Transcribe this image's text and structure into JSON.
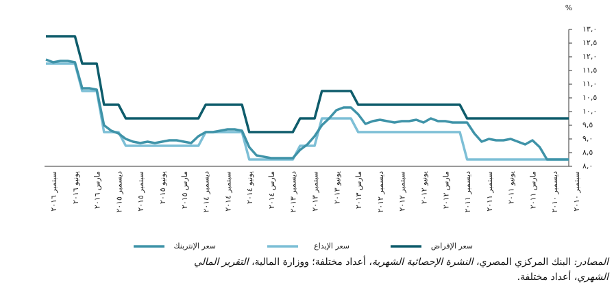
{
  "chart_data": {
    "type": "line",
    "unit_label": "%",
    "categories": [
      "سبتمبر ٢٠١٦",
      null,
      null,
      "يونيو ٢٠١٦",
      null,
      null,
      "مارس ٢٠١٦",
      null,
      null,
      "ديسمبر ٢٠١٥",
      null,
      null,
      "سبتمبر ٢٠١٥",
      null,
      null,
      "يونيو ٢٠١٥",
      null,
      null,
      "مارس ٢٠١٥",
      null,
      null,
      "ديسمبر ٢٠١٤",
      null,
      null,
      "سبتمبر ٢٠١٤",
      null,
      null,
      "يونيو ٢٠١٤",
      null,
      null,
      "مارس ٢٠١٤",
      null,
      null,
      "ديسمبر ٢٠١٣",
      null,
      null,
      "سبتمبر ٢٠١٣",
      null,
      null,
      "يونيو ٢٠١٣",
      null,
      null,
      "مارس ٢٠١٣",
      null,
      null,
      "ديسمبر ٢٠١٢",
      null,
      null,
      "سبتمبر ٢٠١٢",
      null,
      null,
      "يونيو ٢٠١٢",
      null,
      null,
      "مارس ٢٠١٢",
      null,
      null,
      "ديسمبر ٢٠١١",
      null,
      null,
      "سبتمبر ٢٠١١",
      null,
      null,
      "يونيو ٢٠١١",
      null,
      null,
      "مارس ٢٠١١",
      null,
      null,
      "ديسمبر ٢٠١٠",
      null,
      null,
      "سبتمبر ٢٠١٠"
    ],
    "series": [
      {
        "name": "سعر الإقراض",
        "color": "#0e5c6b",
        "values": [
          12.75,
          12.75,
          12.75,
          12.75,
          12.75,
          11.75,
          11.75,
          11.75,
          10.25,
          10.25,
          10.25,
          9.75,
          9.75,
          9.75,
          9.75,
          9.75,
          9.75,
          9.75,
          9.75,
          9.75,
          9.75,
          9.75,
          10.25,
          10.25,
          10.25,
          10.25,
          10.25,
          10.25,
          9.25,
          9.25,
          9.25,
          9.25,
          9.25,
          9.25,
          9.25,
          9.75,
          9.75,
          9.75,
          10.75,
          10.75,
          10.75,
          10.75,
          10.75,
          10.25,
          10.25,
          10.25,
          10.25,
          10.25,
          10.25,
          10.25,
          10.25,
          10.25,
          10.25,
          10.25,
          10.25,
          10.25,
          10.25,
          10.25,
          9.75,
          9.75,
          9.75,
          9.75,
          9.75,
          9.75,
          9.75,
          9.75,
          9.75,
          9.75,
          9.75,
          9.75,
          9.75,
          9.75,
          9.75
        ]
      },
      {
        "name": "سعر الإيداع",
        "color": "#7dbfd6",
        "values": [
          11.75,
          11.75,
          11.75,
          11.75,
          11.75,
          10.75,
          10.75,
          10.75,
          9.25,
          9.25,
          9.25,
          8.75,
          8.75,
          8.75,
          8.75,
          8.75,
          8.75,
          8.75,
          8.75,
          8.75,
          8.75,
          8.75,
          9.25,
          9.25,
          9.25,
          9.25,
          9.25,
          9.25,
          8.25,
          8.25,
          8.25,
          8.25,
          8.25,
          8.25,
          8.25,
          8.75,
          8.75,
          8.75,
          9.75,
          9.75,
          9.75,
          9.75,
          9.75,
          9.25,
          9.25,
          9.25,
          9.25,
          9.25,
          9.25,
          9.25,
          9.25,
          9.25,
          9.25,
          9.25,
          9.25,
          9.25,
          9.25,
          9.25,
          8.25,
          8.25,
          8.25,
          8.25,
          8.25,
          8.25,
          8.25,
          8.25,
          8.25,
          8.25,
          8.25,
          8.25,
          8.25,
          8.25,
          8.25
        ]
      },
      {
        "name": "سعر الإنتربنك",
        "color": "#3f93a8",
        "values": [
          11.9,
          11.8,
          11.85,
          11.85,
          11.8,
          10.85,
          10.85,
          10.8,
          9.5,
          9.3,
          9.2,
          9.0,
          8.9,
          8.85,
          8.9,
          8.85,
          8.9,
          8.95,
          8.95,
          8.9,
          8.85,
          9.1,
          9.25,
          9.25,
          9.3,
          9.35,
          9.35,
          9.3,
          8.7,
          8.4,
          8.35,
          8.3,
          8.3,
          8.3,
          8.3,
          8.6,
          8.8,
          9.1,
          9.5,
          9.75,
          10.05,
          10.15,
          10.15,
          9.9,
          9.55,
          9.65,
          9.7,
          9.65,
          9.6,
          9.65,
          9.65,
          9.7,
          9.6,
          9.75,
          9.65,
          9.65,
          9.6,
          9.6,
          9.6,
          9.2,
          8.9,
          9.0,
          8.95,
          8.95,
          9.0,
          8.9,
          8.8,
          8.95,
          8.7,
          8.25,
          8.25,
          8.25,
          8.25
        ]
      }
    ],
    "ylim": [
      8,
      13
    ],
    "yticks": [
      {
        "value": 8,
        "label": "٨,٠"
      },
      {
        "value": 8.5,
        "label": "٨,٥"
      },
      {
        "value": 9,
        "label": "٩,٠"
      },
      {
        "value": 9.5,
        "label": "٩,٥"
      },
      {
        "value": 10,
        "label": "١٠,٠"
      },
      {
        "value": 10.5,
        "label": "١٠,٥"
      },
      {
        "value": 11,
        "label": "١١,٠"
      },
      {
        "value": 11.5,
        "label": "١١,٥"
      },
      {
        "value": 12,
        "label": "١٢,٠"
      },
      {
        "value": 12.5,
        "label": "١٢,٥"
      },
      {
        "value": 13,
        "label": "١٣,٠"
      }
    ],
    "grid": false,
    "legend": "bottom",
    "source": [
      {
        "text": "المصادر:",
        "italic": true
      },
      {
        "text": " البنك المركزي المصري، ",
        "italic": false
      },
      {
        "text": "النشرة الإحصائية الشهرية",
        "italic": true
      },
      {
        "text": "، أعداد مختلفة؛ ووزارة المالية، ",
        "italic": false
      },
      {
        "text": "التقرير المالي الشهري",
        "italic": true
      },
      {
        "text": "، أعداد مختلفة.",
        "italic": false
      }
    ]
  }
}
